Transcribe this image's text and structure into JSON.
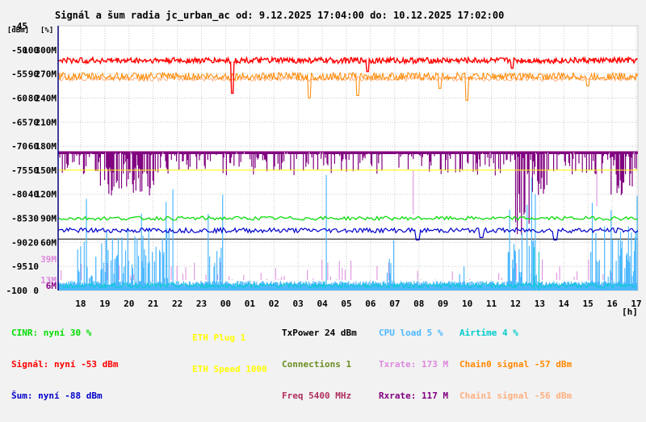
{
  "chart_data": {
    "type": "line",
    "title": "Signál a šum radia jc_urban_ac od: 9.12.2025 17:04:00 do: 10.12.2025 17:02:00",
    "axis_headers": {
      "dbm": "[dBm]",
      "pct": "[%]"
    },
    "y_labels_left": [
      "-45",
      "-50",
      "-55",
      "-60",
      "-65",
      "-70",
      "-75",
      "-80",
      "-85",
      "-90",
      "-95",
      "-100"
    ],
    "y_labels_pct": [
      "100",
      "90",
      "80",
      "70",
      "60",
      "50",
      "40",
      "30",
      "20",
      "10",
      "0"
    ],
    "y_labels_rate": [
      "300M",
      "270M",
      "240M",
      "210M",
      "180M",
      "150M",
      "120M",
      "90M",
      "60M"
    ],
    "rate_markers": [
      {
        "label": "39M",
        "color": "#dd88dd"
      },
      {
        "label": "13M",
        "color": "#dd88dd"
      },
      {
        "label": "6M",
        "color": "#8b008b"
      }
    ],
    "x_ticks": [
      "18",
      "19",
      "20",
      "21",
      "22",
      "23",
      "00",
      "01",
      "02",
      "03",
      "04",
      "05",
      "06",
      "07",
      "08",
      "09",
      "10",
      "11",
      "12",
      "13",
      "14",
      "15",
      "16",
      "17"
    ],
    "x_unit": "[h]",
    "ylim_dbm": [
      -100,
      -45
    ],
    "grid": true,
    "series": [
      {
        "name": "Signál",
        "color": "#ff0000",
        "level_dbm": -52.2,
        "dips": [
          [
            7.2,
            -59
          ],
          [
            12.8,
            -54.5
          ],
          [
            18.8,
            -53.8
          ]
        ]
      },
      {
        "name": "Chain0 signal",
        "color": "#ff8800",
        "level_dbm": -55.5,
        "dips": [
          [
            10.4,
            -60
          ],
          [
            12.4,
            -59.5
          ],
          [
            15.8,
            -58
          ],
          [
            16.9,
            -60.5
          ],
          [
            21.9,
            -57.5
          ]
        ]
      },
      {
        "name": "Chain1 signal",
        "color": "#ffb080",
        "level_dbm": -56.0,
        "dips": []
      },
      {
        "name": "CINR",
        "color": "#00dd00",
        "level_pct": 30,
        "dips": []
      },
      {
        "name": "Šum",
        "color": "#0000cc",
        "level_dbm": -87.5,
        "dips": [
          [
            14.9,
            -89.5
          ],
          [
            17.5,
            -89
          ],
          [
            20.6,
            -89.5
          ]
        ]
      },
      {
        "name": "Rxrate",
        "color": "#800080",
        "top_mbps": 173,
        "range_mbps": [
          120,
          173
        ],
        "drop_regions": [
          [
            1.5,
            4.2
          ],
          [
            18.9,
            20.3
          ],
          [
            22.7,
            23.9
          ]
        ]
      },
      {
        "name": "Txrate",
        "color": "#dd88dd",
        "top_mbps": 173,
        "range_mbps": [
          13,
          39
        ]
      },
      {
        "name": "CPU load",
        "color": "#4db8ff",
        "base_pct": 2,
        "bursts": [
          [
            0.8,
            4.6
          ],
          [
            6.2,
            6.9
          ],
          [
            10.9,
            11.2
          ],
          [
            13.6,
            13.9
          ],
          [
            16.6,
            17.0
          ],
          [
            18.6,
            19.8
          ],
          [
            22.0,
            24.0
          ]
        ]
      },
      {
        "name": "Airtime",
        "color": "#00cccc",
        "base_pct": 1
      }
    ],
    "reference_lines": [
      {
        "dbm": -89.3,
        "color": "#000000"
      },
      {
        "mbps": 150,
        "color": "#ffff00"
      },
      {
        "mbps": 6,
        "color": "#ffff00"
      }
    ]
  },
  "legend": {
    "col1": [
      {
        "text": "CINR: nyní 30 %",
        "color": "#00dd00"
      },
      {
        "text": "Signál: nyní -53 dBm",
        "color": "#ff0000"
      },
      {
        "text": "Šum: nyní -88 dBm",
        "color": "#0000cc"
      }
    ],
    "col2": [
      {
        "text": "ETH Plug 1",
        "color": "#ffff00"
      },
      {
        "text": "ETH Speed 1000",
        "color": "#ffff00"
      }
    ],
    "col3": [
      {
        "text": "TxPower 24 dBm",
        "color": "#000000"
      },
      {
        "text": "Connections 1",
        "color": "#6b8e23"
      },
      {
        "text": "Freq 5400 MHz",
        "color": "#b03060"
      }
    ],
    "col4": [
      {
        "text": "CPU load 5 %",
        "color": "#4db8ff"
      },
      {
        "text": "Txrate: 173 M",
        "color": "#dd88dd"
      },
      {
        "text": "Rxrate: 117 M",
        "color": "#800080"
      }
    ],
    "col5": [
      {
        "text": "Airtime 4 %",
        "color": "#00cccc"
      },
      {
        "text": "Chain0 signal -57 dBm",
        "color": "#ff8800"
      },
      {
        "text": "Chain1 signal -56 dBm",
        "color": "#ffb080"
      }
    ]
  }
}
